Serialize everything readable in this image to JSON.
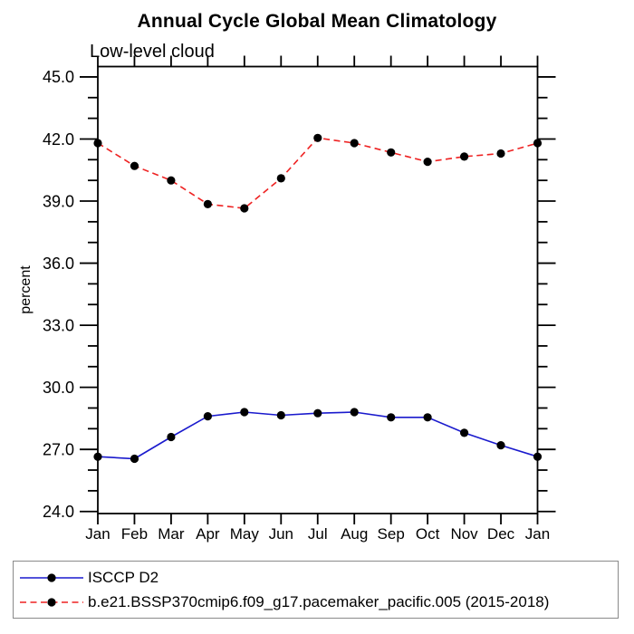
{
  "title": "Annual Cycle Global Mean Climatology",
  "subtitle": "Low-level cloud",
  "chart_data": {
    "type": "line",
    "categories": [
      "Jan",
      "Feb",
      "Mar",
      "Apr",
      "May",
      "Jun",
      "Jul",
      "Aug",
      "Sep",
      "Oct",
      "Nov",
      "Dec",
      "Jan"
    ],
    "title": "Annual Cycle Global Mean Climatology",
    "subtitle": "Low-level cloud",
    "xlabel": "",
    "ylabel": "percent",
    "ylim": [
      23.9,
      45.5
    ],
    "yticks_major": [
      24.0,
      27.0,
      30.0,
      33.0,
      36.0,
      39.0,
      42.0,
      45.0
    ],
    "ytick_label_format": "one-decimal",
    "ytick_minor_step": 1.0,
    "grid": false,
    "legend_position": "bottom",
    "axis_color": "#000000",
    "marker_color": "#000000",
    "series": [
      {
        "name": "ISCCP D2",
        "color": "#1a1acd",
        "line_style": "solid",
        "marker": "circle",
        "values": [
          26.65,
          26.55,
          27.6,
          28.6,
          28.8,
          28.65,
          28.75,
          28.8,
          28.55,
          28.55,
          27.8,
          27.2,
          26.65
        ]
      },
      {
        "name": "b.e21.BSSP370cmip6.f09_g17.pacemaker_pacific.005 (2015-2018)",
        "color": "#ee2222",
        "line_style": "dashed",
        "marker": "circle",
        "values": [
          41.8,
          40.7,
          40.0,
          38.85,
          38.65,
          40.1,
          42.05,
          41.8,
          41.35,
          40.9,
          41.15,
          41.3,
          41.8
        ]
      }
    ]
  }
}
